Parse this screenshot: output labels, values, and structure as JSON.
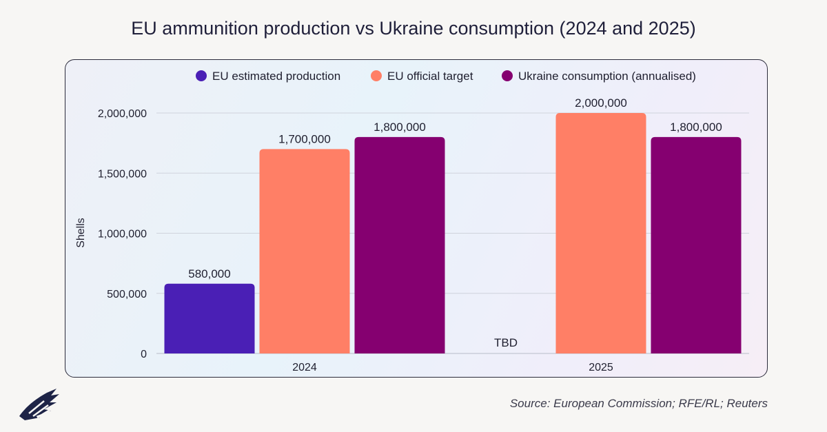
{
  "title": "EU ammunition production vs Ukraine consumption (2024 and 2025)",
  "source": "Source: European Commission; RFE/RL; Reuters",
  "chart_data": {
    "type": "bar",
    "categories": [
      "2024",
      "2025"
    ],
    "series": [
      {
        "name": "EU estimated production",
        "color": "#4a1fb5",
        "values": [
          580000,
          null
        ],
        "labels": [
          "580,000",
          "TBD"
        ]
      },
      {
        "name": "EU official target",
        "color": "#ff7f66",
        "values": [
          1700000,
          2000000
        ],
        "labels": [
          "1,700,000",
          "2,000,000"
        ]
      },
      {
        "name": "Ukraine consumption (annualised)",
        "color": "#850070",
        "values": [
          1800000,
          1800000
        ],
        "labels": [
          "1,800,000",
          "1,800,000"
        ]
      }
    ],
    "ylabel": "Shells",
    "xlabel": "",
    "ylim": [
      0,
      2000000
    ],
    "yticks": [
      0,
      500000,
      1000000,
      1500000,
      2000000
    ],
    "ytick_labels": [
      "0",
      "500,000",
      "1,000,000",
      "1,500,000",
      "2,000,000"
    ],
    "grid": true,
    "legend": "top"
  }
}
